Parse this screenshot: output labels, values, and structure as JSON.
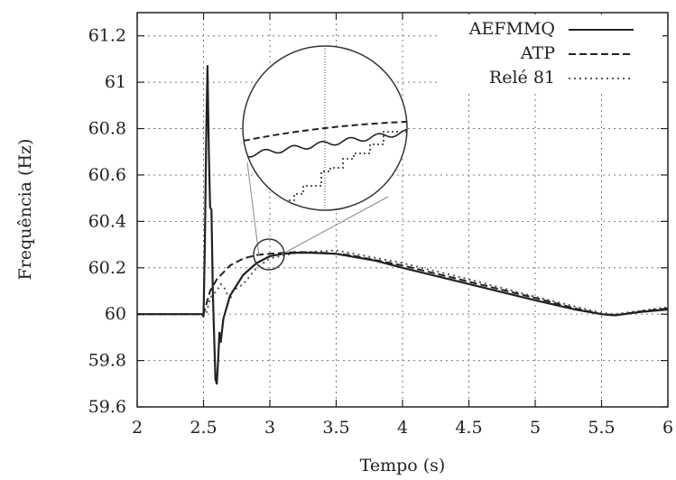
{
  "chart_data": {
    "type": "line",
    "xlabel": "Tempo (s)",
    "ylabel": "Frequência (Hz)",
    "xlim": [
      2,
      6
    ],
    "ylim": [
      59.6,
      61.3
    ],
    "xticks": [
      "2",
      "2.5",
      "3",
      "3.5",
      "4",
      "4.5",
      "5",
      "5.5",
      "6"
    ],
    "yticks": [
      "59.6",
      "59.8",
      "60",
      "60.2",
      "60.4",
      "60.6",
      "60.8",
      "61",
      "61.2"
    ],
    "grid": true,
    "legend_position": "top-right",
    "inset_zoom": {
      "center": [
        3.03,
        60.26
      ],
      "shape": "circle"
    },
    "series": [
      {
        "name": "AEFMMQ",
        "style": "solid",
        "color": "#222222",
        "points": [
          [
            2.0,
            60.0
          ],
          [
            2.49,
            60.0
          ],
          [
            2.5,
            59.99
          ],
          [
            2.51,
            60.3
          ],
          [
            2.52,
            60.75
          ],
          [
            2.53,
            61.07
          ],
          [
            2.54,
            60.7
          ],
          [
            2.55,
            60.46
          ],
          [
            2.56,
            60.45
          ],
          [
            2.57,
            60.1
          ],
          [
            2.58,
            59.9
          ],
          [
            2.59,
            59.72
          ],
          [
            2.6,
            59.7
          ],
          [
            2.61,
            59.8
          ],
          [
            2.62,
            59.92
          ],
          [
            2.63,
            59.88
          ],
          [
            2.65,
            59.98
          ],
          [
            2.7,
            60.08
          ],
          [
            2.8,
            60.17
          ],
          [
            2.9,
            60.22
          ],
          [
            3.0,
            60.25
          ],
          [
            3.1,
            60.26
          ],
          [
            3.2,
            60.265
          ],
          [
            3.3,
            60.265
          ],
          [
            3.5,
            60.26
          ],
          [
            3.8,
            60.23
          ],
          [
            4.0,
            60.2
          ],
          [
            4.5,
            60.13
          ],
          [
            5.0,
            60.06
          ],
          [
            5.3,
            60.02
          ],
          [
            5.5,
            60.0
          ],
          [
            5.6,
            59.995
          ],
          [
            5.8,
            60.01
          ],
          [
            6.0,
            60.02
          ]
        ]
      },
      {
        "name": "ATP",
        "style": "dashed",
        "color": "#222222",
        "points": [
          [
            2.0,
            60.0
          ],
          [
            2.5,
            60.0
          ],
          [
            2.52,
            60.04
          ],
          [
            2.55,
            60.1
          ],
          [
            2.6,
            60.15
          ],
          [
            2.7,
            60.21
          ],
          [
            2.8,
            60.24
          ],
          [
            2.9,
            60.255
          ],
          [
            3.0,
            60.26
          ],
          [
            3.2,
            60.268
          ],
          [
            3.4,
            60.265
          ],
          [
            3.6,
            60.255
          ],
          [
            4.0,
            60.21
          ],
          [
            4.5,
            60.14
          ],
          [
            5.0,
            60.07
          ],
          [
            5.3,
            60.025
          ],
          [
            5.5,
            60.0
          ],
          [
            5.6,
            59.995
          ],
          [
            5.8,
            60.012
          ],
          [
            6.0,
            60.025
          ]
        ]
      },
      {
        "name": "Relé 81",
        "style": "dotted",
        "color": "#555555",
        "points": [
          [
            2.0,
            60.0
          ],
          [
            2.52,
            60.0
          ],
          [
            2.55,
            60.07
          ],
          [
            2.6,
            60.1
          ],
          [
            2.63,
            60.13
          ],
          [
            2.66,
            60.11
          ],
          [
            2.7,
            60.06
          ],
          [
            2.72,
            60.1
          ],
          [
            2.8,
            60.13
          ],
          [
            2.9,
            60.2
          ],
          [
            3.0,
            60.24
          ],
          [
            3.2,
            60.265
          ],
          [
            3.5,
            60.275
          ],
          [
            4.0,
            60.22
          ],
          [
            4.5,
            60.15
          ],
          [
            5.0,
            60.075
          ],
          [
            5.5,
            60.005
          ],
          [
            5.6,
            60.0
          ],
          [
            5.8,
            60.015
          ],
          [
            6.0,
            60.03
          ]
        ]
      }
    ]
  }
}
